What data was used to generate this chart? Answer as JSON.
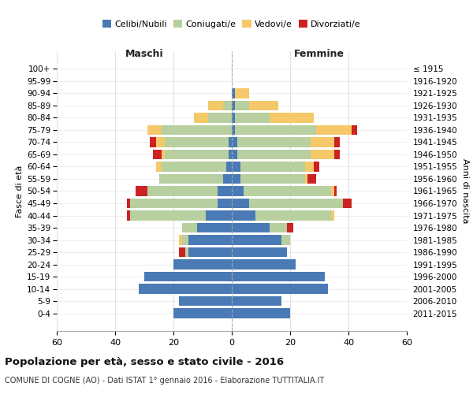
{
  "age_groups": [
    "0-4",
    "5-9",
    "10-14",
    "15-19",
    "20-24",
    "25-29",
    "30-34",
    "35-39",
    "40-44",
    "45-49",
    "50-54",
    "55-59",
    "60-64",
    "65-69",
    "70-74",
    "75-79",
    "80-84",
    "85-89",
    "90-94",
    "95-99",
    "100+"
  ],
  "birth_years": [
    "2011-2015",
    "2006-2010",
    "2001-2005",
    "1996-2000",
    "1991-1995",
    "1986-1990",
    "1981-1985",
    "1976-1980",
    "1971-1975",
    "1966-1970",
    "1961-1965",
    "1956-1960",
    "1951-1955",
    "1946-1950",
    "1941-1945",
    "1936-1940",
    "1931-1935",
    "1926-1930",
    "1921-1925",
    "1916-1920",
    "≤ 1915"
  ],
  "colors": {
    "celibi": "#4a7ab5",
    "coniugati": "#b8cfa0",
    "vedovi": "#f5c96a",
    "divorziati": "#cc2222"
  },
  "males": {
    "celibi": [
      20,
      18,
      32,
      30,
      20,
      15,
      15,
      12,
      9,
      5,
      5,
      3,
      2,
      1,
      1,
      0,
      0,
      0,
      0,
      0,
      0
    ],
    "coniugati": [
      0,
      0,
      0,
      0,
      0,
      1,
      2,
      5,
      26,
      30,
      24,
      22,
      22,
      22,
      22,
      24,
      8,
      3,
      0,
      0,
      0
    ],
    "vedovi": [
      0,
      0,
      0,
      0,
      0,
      0,
      1,
      0,
      0,
      0,
      0,
      0,
      2,
      1,
      3,
      5,
      5,
      5,
      0,
      0,
      0
    ],
    "divorziati": [
      0,
      0,
      0,
      0,
      0,
      2,
      0,
      0,
      1,
      1,
      4,
      0,
      0,
      3,
      2,
      0,
      0,
      0,
      0,
      0,
      0
    ]
  },
  "females": {
    "celibi": [
      20,
      17,
      33,
      32,
      22,
      19,
      17,
      13,
      8,
      6,
      4,
      3,
      3,
      2,
      2,
      1,
      1,
      1,
      1,
      0,
      0
    ],
    "coniugati": [
      0,
      0,
      0,
      0,
      0,
      0,
      3,
      6,
      26,
      32,
      30,
      22,
      22,
      25,
      25,
      28,
      12,
      5,
      0,
      0,
      0
    ],
    "vedovi": [
      0,
      0,
      0,
      0,
      0,
      0,
      0,
      0,
      1,
      0,
      1,
      1,
      3,
      8,
      8,
      12,
      15,
      10,
      5,
      0,
      0
    ],
    "divorziati": [
      0,
      0,
      0,
      0,
      0,
      0,
      0,
      2,
      0,
      3,
      1,
      3,
      2,
      2,
      2,
      2,
      0,
      0,
      0,
      0,
      0
    ]
  },
  "xlim": 60,
  "title": "Popolazione per età, sesso e stato civile - 2016",
  "subtitle": "COMUNE DI COGNE (AO) - Dati ISTAT 1° gennaio 2016 - Elaborazione TUTTITALIA.IT",
  "ylabel_left": "Fasce di età",
  "ylabel_right": "Anni di nascita",
  "header_left": "Maschi",
  "header_right": "Femmine",
  "legend_labels": [
    "Celibi/Nubili",
    "Coniugati/e",
    "Vedovi/e",
    "Divorziati/e"
  ],
  "bg_color": "#ffffff",
  "grid_color": "#cccccc"
}
